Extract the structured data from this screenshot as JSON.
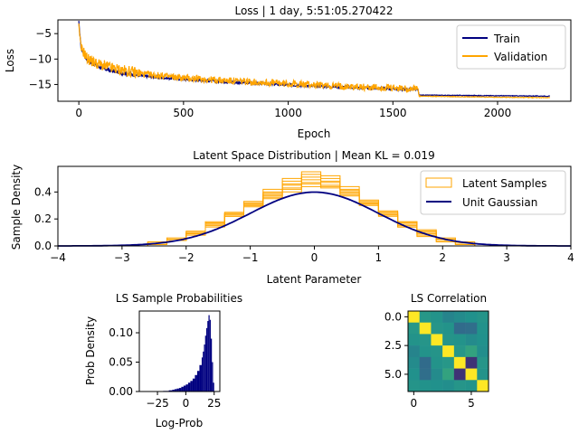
{
  "chart_data": [
    {
      "type": "line",
      "title": "Loss | 1 day, 5:51:05.270422",
      "xlabel": "Epoch",
      "ylabel": "Loss",
      "xlim": [
        -100,
        2350
      ],
      "ylim": [
        -18.3,
        -2.3
      ],
      "xticks": [
        0,
        500,
        1000,
        1500,
        2000
      ],
      "yticks": [
        -5,
        -10,
        -15
      ],
      "legend_position": "top-right",
      "series": [
        {
          "name": "Train",
          "color": "#000080",
          "points": [
            [
              0,
              -2.5
            ],
            [
              5,
              -5.5
            ],
            [
              10,
              -7.5
            ],
            [
              20,
              -8.8
            ],
            [
              40,
              -10.2
            ],
            [
              70,
              -11.0
            ],
            [
              100,
              -11.6
            ],
            [
              150,
              -12.3
            ],
            [
              200,
              -12.7
            ],
            [
              300,
              -13.3
            ],
            [
              400,
              -13.7
            ],
            [
              500,
              -14.0
            ],
            [
              700,
              -14.5
            ],
            [
              900,
              -14.9
            ],
            [
              1100,
              -15.3
            ],
            [
              1300,
              -15.6
            ],
            [
              1500,
              -15.9
            ],
            [
              1620,
              -16.0
            ],
            [
              1625,
              -17.1
            ],
            [
              2000,
              -17.2
            ],
            [
              2250,
              -17.3
            ]
          ]
        },
        {
          "name": "Validation",
          "color": "#FFA500",
          "points": [
            [
              0,
              -3.0
            ],
            [
              5,
              -6.0
            ],
            [
              10,
              -8.0
            ],
            [
              20,
              -8.5
            ],
            [
              40,
              -10.0
            ],
            [
              70,
              -10.7
            ],
            [
              100,
              -11.2
            ],
            [
              150,
              -11.8
            ],
            [
              200,
              -12.3
            ],
            [
              300,
              -13.0
            ],
            [
              400,
              -13.4
            ],
            [
              500,
              -13.8
            ],
            [
              700,
              -14.3
            ],
            [
              900,
              -14.7
            ],
            [
              1100,
              -15.1
            ],
            [
              1300,
              -15.5
            ],
            [
              1500,
              -15.8
            ],
            [
              1620,
              -15.9
            ],
            [
              1625,
              -17.3
            ],
            [
              2000,
              -17.5
            ],
            [
              2250,
              -17.6
            ]
          ]
        }
      ]
    },
    {
      "type": "line",
      "title": "Latent Space Distribution | Mean KL = 0.019",
      "xlabel": "Latent Parameter",
      "ylabel": "Sample Density",
      "xlim": [
        -4,
        4
      ],
      "ylim": [
        0,
        0.59
      ],
      "xticks": [
        -4,
        -3,
        -2,
        -1,
        0,
        1,
        2,
        3,
        4
      ],
      "yticks": [
        0.0,
        0.2,
        0.4
      ],
      "legend_position": "top-right",
      "series": [
        {
          "name": "Latent Samples",
          "color": "#FFA500",
          "style": "step histograms (7 dimensions)",
          "bin_edges": [
            -2.6,
            -2.3,
            -2.0,
            -1.7,
            -1.4,
            -1.1,
            -0.8,
            -0.5,
            -0.2,
            0.1,
            0.4,
            0.7,
            1.0,
            1.3,
            1.6,
            1.9,
            2.2,
            2.5
          ],
          "densities": [
            [
              0.02,
              0.05,
              0.1,
              0.18,
              0.24,
              0.3,
              0.36,
              0.42,
              0.46,
              0.44,
              0.4,
              0.33,
              0.26,
              0.18,
              0.11,
              0.05,
              0.02
            ],
            [
              0.01,
              0.04,
              0.08,
              0.14,
              0.22,
              0.32,
              0.4,
              0.48,
              0.53,
              0.5,
              0.42,
              0.32,
              0.22,
              0.14,
              0.08,
              0.04,
              0.01
            ],
            [
              0.02,
              0.05,
              0.11,
              0.17,
              0.25,
              0.31,
              0.38,
              0.45,
              0.49,
              0.47,
              0.38,
              0.3,
              0.24,
              0.16,
              0.1,
              0.05,
              0.02
            ],
            [
              0.03,
              0.06,
              0.1,
              0.16,
              0.22,
              0.29,
              0.35,
              0.4,
              0.44,
              0.43,
              0.37,
              0.31,
              0.25,
              0.18,
              0.12,
              0.06,
              0.03
            ],
            [
              0.01,
              0.04,
              0.09,
              0.15,
              0.23,
              0.33,
              0.42,
              0.5,
              0.55,
              0.52,
              0.44,
              0.34,
              0.23,
              0.14,
              0.07,
              0.03,
              0.01
            ],
            [
              0.02,
              0.05,
              0.1,
              0.17,
              0.24,
              0.3,
              0.37,
              0.43,
              0.47,
              0.45,
              0.39,
              0.31,
              0.25,
              0.17,
              0.11,
              0.05,
              0.02
            ],
            [
              0.02,
              0.04,
              0.09,
              0.16,
              0.24,
              0.31,
              0.39,
              0.46,
              0.51,
              0.48,
              0.41,
              0.32,
              0.23,
              0.15,
              0.09,
              0.04,
              0.02
            ]
          ]
        },
        {
          "name": "Unit Gaussian",
          "color": "#000080",
          "style": "standard normal pdf, mean 0, std 1"
        }
      ]
    },
    {
      "type": "bar",
      "title": "LS Sample Probabilities",
      "xlabel": "Log-Prob",
      "ylabel": "Prob Density",
      "xlim": [
        -41,
        30
      ],
      "ylim": [
        0,
        0.137
      ],
      "xticks": [
        -25,
        0,
        25
      ],
      "yticks": [
        0.0,
        0.05,
        0.1
      ],
      "color": "#000080",
      "x": [
        -30,
        -25,
        -20,
        -15,
        -12,
        -10,
        -8,
        -6,
        -4,
        -2,
        0,
        2,
        4,
        6,
        8,
        10,
        12,
        14,
        15,
        16,
        17,
        18,
        19,
        20,
        21,
        22,
        23,
        24
      ],
      "values": [
        0.0003,
        0.0005,
        0.001,
        0.002,
        0.003,
        0.004,
        0.005,
        0.006,
        0.008,
        0.01,
        0.012,
        0.015,
        0.018,
        0.022,
        0.028,
        0.035,
        0.045,
        0.058,
        0.068,
        0.08,
        0.095,
        0.108,
        0.12,
        0.13,
        0.122,
        0.09,
        0.05,
        0.015
      ]
    },
    {
      "type": "heatmap",
      "title": "LS Correlation",
      "xticks": [
        0,
        5
      ],
      "yticks": [
        0.0,
        2.5,
        5.0
      ],
      "colormap": "viridis",
      "range": [
        -1,
        1
      ],
      "values": [
        [
          1.0,
          0.05,
          0.02,
          -0.1,
          -0.05,
          0.0,
          0.03
        ],
        [
          0.05,
          1.0,
          0.04,
          0.02,
          -0.3,
          -0.28,
          0.01
        ],
        [
          0.02,
          0.04,
          1.0,
          0.03,
          0.02,
          -0.05,
          0.0
        ],
        [
          -0.1,
          0.02,
          0.03,
          1.0,
          0.05,
          0.15,
          -0.02
        ],
        [
          -0.05,
          -0.3,
          0.02,
          0.05,
          1.0,
          -0.7,
          0.04
        ],
        [
          0.0,
          -0.28,
          -0.05,
          0.15,
          -0.7,
          1.0,
          0.02
        ],
        [
          0.03,
          0.01,
          0.0,
          -0.02,
          0.04,
          0.02,
          1.0
        ]
      ]
    }
  ]
}
